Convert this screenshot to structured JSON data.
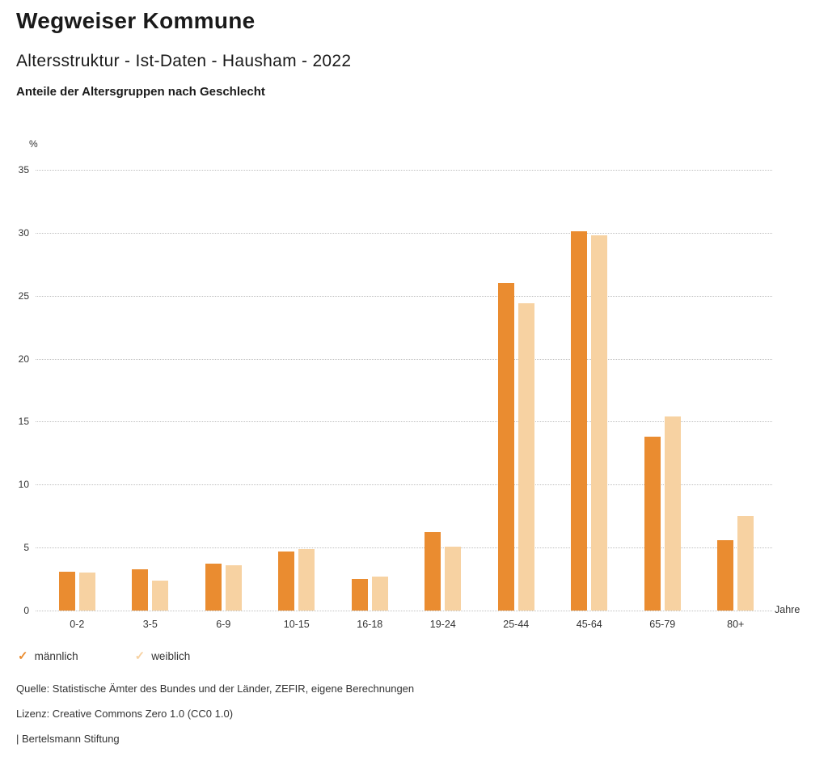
{
  "header": {
    "title": "Wegweiser Kommune",
    "subtitle": "Altersstruktur - Ist-Daten - Hausham - 2022",
    "chart_heading": "Anteile der Altersgruppen nach Geschlecht"
  },
  "chart_data": {
    "type": "bar",
    "title": "Anteile der Altersgruppen nach Geschlecht",
    "unit_label": "%",
    "x_axis_label": "Jahre",
    "categories": [
      "0-2",
      "3-5",
      "6-9",
      "10-15",
      "16-18",
      "19-24",
      "25-44",
      "45-64",
      "65-79",
      "80+"
    ],
    "series": [
      {
        "name": "männlich",
        "color": "#EA8C30",
        "values": [
          3.1,
          3.3,
          3.7,
          4.7,
          2.5,
          6.2,
          26.0,
          30.1,
          13.8,
          5.6
        ]
      },
      {
        "name": "weiblich",
        "color": "#F7D2A2",
        "values": [
          3.0,
          2.4,
          3.6,
          4.9,
          2.7,
          5.1,
          24.4,
          29.8,
          15.4,
          7.5
        ]
      }
    ],
    "ylim": [
      0,
      35
    ],
    "ytick_step": 5,
    "grid": "dotted horizontal",
    "legend_position": "bottom-left"
  },
  "legend": {
    "items": [
      {
        "label": "männlich",
        "color": "#EA8C30"
      },
      {
        "label": "weiblich",
        "color": "#F7D2A2"
      }
    ]
  },
  "footer": {
    "source": "Quelle: Statistische Ämter des Bundes und der Länder, ZEFIR, eigene Berechnungen",
    "license": "Lizenz: Creative Commons Zero 1.0 (CC0 1.0)",
    "attribution": "| Bertelsmann Stiftung"
  }
}
